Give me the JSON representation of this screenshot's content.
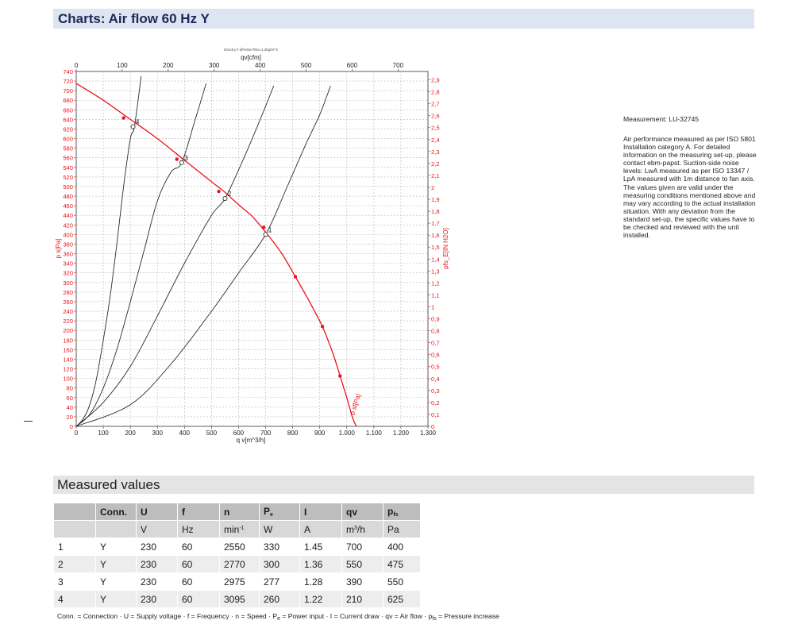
{
  "header": {
    "title": "Charts: Air flow 60 Hz Y"
  },
  "note": {
    "measurement": "Measurement: LU-32745",
    "body": "Air performance measured as per ISO 5801 Installation category A. For detailed information on the measuring set-up, please contact ebm-papst. Suction-side noise levels: LwA measured as per ISO 13347 / LpA measured with 1m distance to fan axis. The values given are valid under the measuring conditions mentioned above and may vary according to the actual installation situation. With any deviation from the standard set-up, the specific values have to be checked and reviewed with the unit installed."
  },
  "chart_data": {
    "type": "line",
    "title": "",
    "tiny_caption": "Druck p f @%Sür Rho=1,2kg/m^3",
    "xlabel": "q v[m^3/h]",
    "x2label": "qv[cfm]",
    "ylabel": "p s[Pa]",
    "y2label": "pfs_E[IN H2O]",
    "xlim": [
      0,
      1300
    ],
    "x2lim": [
      0,
      765
    ],
    "ylim": [
      0,
      740
    ],
    "y2lim": [
      0,
      2.97
    ],
    "x_ticks": [
      "0",
      "100",
      "200",
      "300",
      "400",
      "500",
      "600",
      "700",
      "800",
      "900",
      "1.000",
      "1.100",
      "1.200",
      "1.300"
    ],
    "x2_ticks": [
      "0",
      "100",
      "200",
      "300",
      "400",
      "500",
      "600",
      "700"
    ],
    "y_ticks": [
      "0",
      "20",
      "40",
      "60",
      "80",
      "100",
      "120",
      "140",
      "160",
      "180",
      "200",
      "220",
      "240",
      "260",
      "280",
      "300",
      "320",
      "340",
      "360",
      "380",
      "400",
      "420",
      "440",
      "460",
      "480",
      "500",
      "520",
      "540",
      "560",
      "580",
      "600",
      "620",
      "640",
      "660",
      "680",
      "700",
      "720",
      "740"
    ],
    "y2_ticks": [
      "0",
      "0,1",
      "0,2",
      "0,3",
      "0,4",
      "0,5",
      "0,6",
      "0,7",
      "0,8",
      "0,9",
      "1",
      "1,1",
      "1,2",
      "1,3",
      "1,4",
      "1,5",
      "1,6",
      "1,7",
      "1,8",
      "1,9",
      "2",
      "2,1",
      "2,2",
      "2,3",
      "2,4",
      "2,5",
      "2,6",
      "2,7",
      "2,8",
      "2,9"
    ],
    "grid": true,
    "fan_curve": {
      "label": "p sf[Pa]",
      "color": "#e8141b",
      "points": [
        [
          0,
          715
        ],
        [
          100,
          680
        ],
        [
          200,
          640
        ],
        [
          300,
          600
        ],
        [
          400,
          555
        ],
        [
          500,
          510
        ],
        [
          550,
          488
        ],
        [
          600,
          462
        ],
        [
          650,
          438
        ],
        [
          700,
          405
        ],
        [
          760,
          360
        ],
        [
          810,
          312
        ],
        [
          860,
          262
        ],
        [
          910,
          208
        ],
        [
          950,
          150
        ],
        [
          975,
          105
        ],
        [
          1000,
          60
        ],
        [
          1020,
          20
        ],
        [
          1035,
          0
        ]
      ],
      "markers": [
        [
          175,
          643
        ],
        [
          372,
          557
        ],
        [
          527,
          490
        ],
        [
          693,
          415
        ],
        [
          810,
          312
        ],
        [
          910,
          208
        ],
        [
          975,
          105
        ]
      ]
    },
    "system_curves": [
      {
        "points": [
          [
            0,
            0
          ],
          [
            25,
            15
          ],
          [
            50,
            45
          ],
          [
            75,
            100
          ],
          [
            100,
            180
          ],
          [
            125,
            270
          ],
          [
            150,
            380
          ],
          [
            175,
            500
          ],
          [
            200,
            600
          ],
          [
            215,
            625
          ],
          [
            240,
            730
          ]
        ]
      },
      {
        "points": [
          [
            0,
            0
          ],
          [
            50,
            25
          ],
          [
            100,
            80
          ],
          [
            150,
            160
          ],
          [
            200,
            260
          ],
          [
            250,
            365
          ],
          [
            300,
            470
          ],
          [
            350,
            530
          ],
          [
            390,
            550
          ],
          [
            440,
            640
          ],
          [
            480,
            715
          ]
        ]
      },
      {
        "points": [
          [
            0,
            0
          ],
          [
            100,
            50
          ],
          [
            200,
            125
          ],
          [
            300,
            230
          ],
          [
            400,
            340
          ],
          [
            500,
            440
          ],
          [
            550,
            475
          ],
          [
            620,
            560
          ],
          [
            680,
            640
          ],
          [
            730,
            710
          ]
        ]
      },
      {
        "points": [
          [
            0,
            0
          ],
          [
            200,
            45
          ],
          [
            350,
            130
          ],
          [
            500,
            240
          ],
          [
            600,
            320
          ],
          [
            700,
            400
          ],
          [
            780,
            500
          ],
          [
            850,
            590
          ],
          [
            900,
            650
          ],
          [
            940,
            710
          ]
        ]
      }
    ],
    "op_points": [
      {
        "label": "1",
        "qv": 700,
        "ps": 400
      },
      {
        "label": "2",
        "qv": 550,
        "ps": 475
      },
      {
        "label": "3",
        "qv": 390,
        "ps": 550
      },
      {
        "label": "4",
        "qv": 210,
        "ps": 625
      }
    ]
  },
  "measured": {
    "title": "Measured values",
    "headers": [
      "",
      "Conn.",
      "U",
      "f",
      "n",
      "P",
      "I",
      "qv",
      "p"
    ],
    "header_subs": [
      "",
      "",
      "",
      "",
      "",
      "e",
      "",
      "",
      "fs"
    ],
    "units": [
      "",
      "",
      "V",
      "Hz",
      "min",
      "W",
      "A",
      "m",
      "Pa"
    ],
    "unit_sups": [
      "",
      "",
      "",
      "",
      "-1",
      "",
      "",
      "3",
      ""
    ],
    "unit_suffix": [
      "",
      "",
      "",
      "",
      "",
      "",
      "",
      "/h",
      ""
    ],
    "rows": [
      [
        "1",
        "Y",
        "230",
        "60",
        "2550",
        "330",
        "1.45",
        "700",
        "400"
      ],
      [
        "2",
        "Y",
        "230",
        "60",
        "2770",
        "300",
        "1.36",
        "550",
        "475"
      ],
      [
        "3",
        "Y",
        "230",
        "60",
        "2975",
        "277",
        "1.28",
        "390",
        "550"
      ],
      [
        "4",
        "Y",
        "230",
        "60",
        "3095",
        "260",
        "1.22",
        "210",
        "625"
      ]
    ],
    "legend": {
      "a": "Conn. = Connection · U = Supply voltage · f = Frequency · n = Speed · P",
      "a_sub": "e",
      "b": " = Power input · I = Current draw · qv = Air flow · p",
      "b_sub": "fs",
      "c": " = Pressure increase"
    }
  }
}
